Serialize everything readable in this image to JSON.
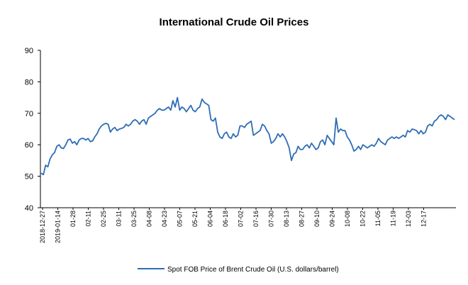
{
  "chart_data": {
    "type": "line",
    "title": "International Crude Oil Prices",
    "xlabel": "",
    "ylabel": "",
    "ylim": [
      40,
      90
    ],
    "yticks": [
      40,
      50,
      60,
      70,
      80,
      90
    ],
    "grid": false,
    "legend_position": "bottom",
    "x_tick_labels": [
      "2018-12-27",
      "2019-01-14",
      "01-28",
      "02-11",
      "02-25",
      "03-11",
      "03-25",
      "04-08",
      "04-23",
      "05-07",
      "05-21",
      "06-04",
      "06-18",
      "07-02",
      "07-16",
      "07-30",
      "08-13",
      "08-27",
      "09-10",
      "09-24",
      "10-08",
      "10-22",
      "11-05",
      "11-19",
      "12-03",
      "12-17"
    ],
    "series": [
      {
        "name": "Spot FOB Price of Brent Crude Oil (U.S. dollars/barrel)",
        "color": "#2f6db5",
        "values": [
          51.0,
          50.5,
          53.5,
          53.0,
          55.5,
          56.8,
          57.5,
          59.5,
          60.0,
          59.0,
          58.8,
          60.0,
          61.5,
          61.8,
          60.5,
          61.0,
          60.0,
          61.5,
          62.0,
          62.0,
          61.5,
          62.0,
          61.0,
          61.2,
          62.5,
          63.5,
          65.0,
          66.0,
          66.5,
          66.8,
          66.5,
          64.0,
          65.0,
          65.5,
          64.5,
          65.0,
          65.2,
          65.5,
          66.5,
          66.0,
          66.5,
          67.5,
          68.0,
          67.5,
          66.5,
          67.5,
          68.0,
          66.5,
          68.5,
          69.0,
          69.5,
          70.0,
          71.0,
          71.5,
          71.0,
          71.0,
          71.5,
          72.0,
          71.0,
          74.0,
          72.0,
          75.0,
          71.0,
          72.0,
          71.5,
          70.5,
          71.5,
          72.5,
          71.0,
          70.5,
          71.5,
          72.0,
          74.5,
          73.5,
          73.0,
          72.5,
          68.0,
          67.5,
          68.5,
          64.0,
          62.5,
          62.0,
          63.5,
          64.0,
          62.5,
          62.0,
          63.5,
          62.5,
          63.0,
          66.0,
          66.0,
          65.5,
          66.5,
          67.0,
          67.5,
          63.0,
          63.5,
          64.0,
          64.5,
          66.5,
          66.0,
          64.5,
          63.5,
          60.5,
          61.0,
          62.0,
          63.5,
          62.5,
          63.5,
          62.5,
          61.0,
          59.0,
          55.0,
          57.0,
          57.5,
          59.5,
          58.5,
          58.5,
          59.5,
          60.0,
          59.0,
          60.5,
          59.5,
          58.5,
          59.0,
          61.0,
          61.5,
          60.0,
          63.0,
          62.0,
          61.0,
          60.0,
          68.5,
          64.0,
          65.0,
          64.5,
          64.5,
          62.5,
          61.5,
          60.0,
          58.0,
          58.5,
          59.5,
          58.5,
          60.0,
          59.5,
          59.0,
          59.5,
          60.0,
          59.5,
          60.5,
          62.0,
          61.0,
          60.5,
          60.0,
          61.5,
          62.0,
          62.5,
          62.0,
          62.5,
          62.0,
          62.5,
          63.0,
          62.5,
          64.5,
          64.0,
          65.0,
          64.8,
          64.5,
          63.5,
          64.5,
          63.5,
          64.0,
          66.0,
          66.5,
          66.0,
          67.5,
          68.0,
          69.0,
          69.5,
          69.0,
          68.0,
          69.5,
          69.0,
          68.5,
          68.0
        ]
      }
    ]
  }
}
